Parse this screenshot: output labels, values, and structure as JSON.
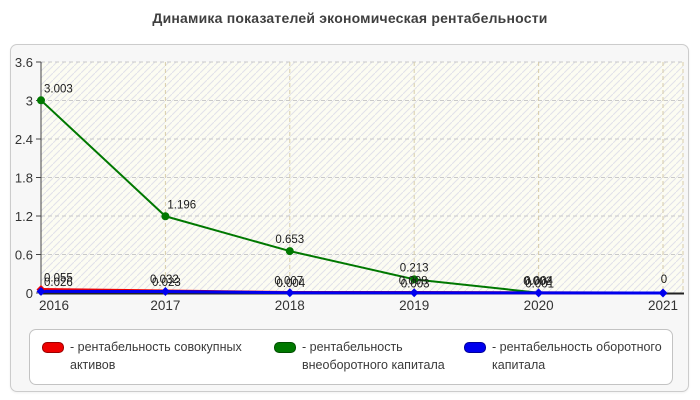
{
  "title": "Динамика показателей экономическая рентабельности",
  "chart_data": {
    "type": "line",
    "x_labels": [
      "2016",
      "2017",
      "2018",
      "2019",
      "2020",
      "2021"
    ],
    "y_ticks": [
      "0",
      "0.6",
      "1.2",
      "1.8",
      "2.4",
      "3",
      "3.6"
    ],
    "y_tick_values": [
      0,
      0.6,
      1.2,
      1.8,
      2.4,
      3,
      3.6
    ],
    "ylim": [
      0,
      3.6
    ],
    "grid": true,
    "legend_position": "bottom",
    "series": [
      {
        "name": "рентабельность совокупных активов",
        "color": "#ee0000",
        "marker": "diamond",
        "values": [
          0.055,
          0.032,
          0.007,
          0.008,
          0.002,
          0
        ],
        "labels": [
          "0.055",
          "0.032",
          "0.007",
          "0.008",
          "0.002",
          ""
        ]
      },
      {
        "name": "рентабельность внеоборотного капитала",
        "color": "#007800",
        "marker": "circle",
        "values": [
          3.003,
          1.196,
          0.653,
          0.213,
          0.004,
          0
        ],
        "labels": [
          "3.003",
          "1.196",
          "0.653",
          "0.213",
          "0.004",
          ""
        ]
      },
      {
        "name": "рентабельность оборотного капитала",
        "color": "#0000ee",
        "marker": "diamond",
        "values": [
          0.026,
          0.023,
          0.004,
          0.003,
          0.001,
          0
        ],
        "labels": [
          "0.026",
          "0.023",
          "0.004",
          "0.003",
          "0.001",
          "0"
        ]
      }
    ]
  },
  "legend": {
    "items": [
      {
        "label": "- рентабельность совокупных активов",
        "color": "#ee0000"
      },
      {
        "label": "- рентабельность внеоборотного капитала",
        "color": "#007800"
      },
      {
        "label": "- рентабельность оборотного капитала",
        "color": "#0000ee"
      }
    ]
  }
}
